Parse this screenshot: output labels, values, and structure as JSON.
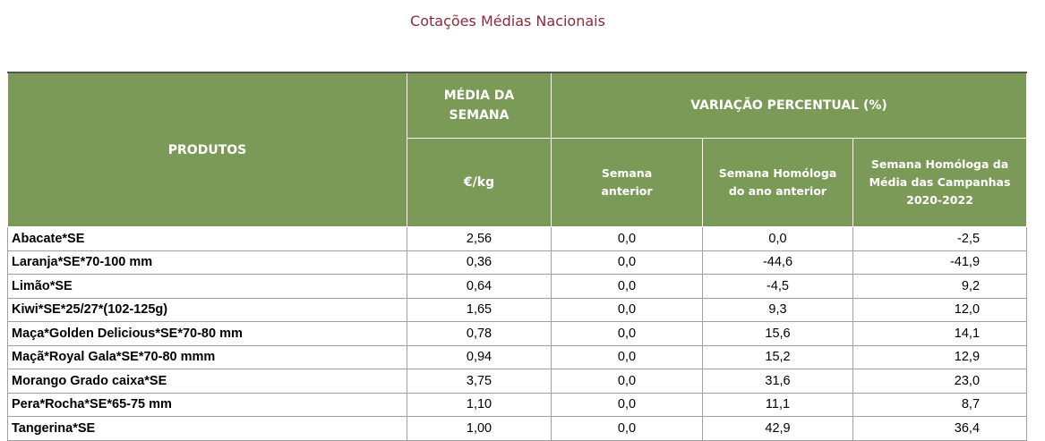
{
  "title": "Cotações Médias Nacionais",
  "headers": {
    "produtos": "PRODUTOS",
    "media_line1": "MÉDIA DA",
    "media_line2": "SEMANA",
    "unit": "€/kg",
    "variacao": "VARIAÇÃO PERCENTUAL (%)",
    "sem_ant_l1": "Semana",
    "sem_ant_l2": "anterior",
    "homologa_l1": "Semana Homóloga",
    "homologa_l2": "do ano anterior",
    "camp_l1": "Semana Homóloga da",
    "camp_l2": "Média das Campanhas",
    "camp_l3": "2020-2022"
  },
  "rows": [
    {
      "produto": "Abacate*SE",
      "media": "2,56",
      "sem_ant": "0,0",
      "homologa": "0,0",
      "campanhas": "-2,5"
    },
    {
      "produto": "Laranja*SE*70-100 mm",
      "media": "0,36",
      "sem_ant": "0,0",
      "homologa": "-44,6",
      "campanhas": "-41,9"
    },
    {
      "produto": "Limão*SE",
      "media": "0,64",
      "sem_ant": "0,0",
      "homologa": "-4,5",
      "campanhas": "9,2"
    },
    {
      "produto": "Kiwi*SE*25/27*(102-125g)",
      "media": "1,65",
      "sem_ant": "0,0",
      "homologa": "9,3",
      "campanhas": "12,0"
    },
    {
      "produto": "Maça*Golden Delicious*SE*70-80 mm",
      "media": "0,78",
      "sem_ant": "0,0",
      "homologa": "15,6",
      "campanhas": "14,1"
    },
    {
      "produto": "Maçã*Royal Gala*SE*70-80 mmm",
      "media": "0,94",
      "sem_ant": "0,0",
      "homologa": "15,2",
      "campanhas": "12,9"
    },
    {
      "produto": "Morango Grado caixa*SE",
      "media": "3,75",
      "sem_ant": "0,0",
      "homologa": "31,6",
      "campanhas": "23,0"
    },
    {
      "produto": "Pera*Rocha*SE*65-75 mm",
      "media": "1,10",
      "sem_ant": "0,0",
      "homologa": "11,1",
      "campanhas": "8,7"
    },
    {
      "produto": "Tangerina*SE",
      "media": "1,00",
      "sem_ant": "0,0",
      "homologa": "42,9",
      "campanhas": "36,4"
    }
  ]
}
